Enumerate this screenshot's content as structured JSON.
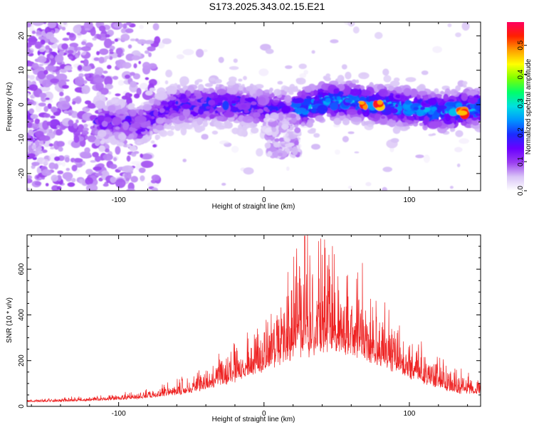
{
  "title": "S173.2025.343.02.15.E21",
  "chart_data": [
    {
      "type": "heatmap",
      "xlabel": "Height of straight line (km)",
      "ylabel": "Frequency (Hz)",
      "xlim": [
        -163,
        149
      ],
      "ylim": [
        -25,
        24
      ],
      "x_ticks": [
        -100,
        0,
        100
      ],
      "y_ticks": [
        -20,
        -10,
        0,
        10,
        20
      ],
      "colorbar": {
        "label": "Normalized spectral amplitude",
        "range": [
          0.0,
          0.58
        ],
        "ticks": [
          "0.0",
          "0.1",
          "0.2",
          "0.3",
          "0.4",
          "0.5"
        ],
        "tick_values": [
          0.0,
          0.1,
          0.2,
          0.3,
          0.4,
          0.5
        ],
        "colors": [
          "#ffffff",
          "#d9c4f7",
          "#9b3ff0",
          "#6a00ff",
          "#1c2bff",
          "#0094ff",
          "#00e0e0",
          "#00ff6a",
          "#7fff00",
          "#ffff00",
          "#ff9d00",
          "#ff2000",
          "#ff0060"
        ]
      },
      "ridge": {
        "x": [
          -163,
          -140,
          -120,
          -100,
          -85,
          -75,
          -60,
          -40,
          -20,
          0,
          20,
          40,
          60,
          80,
          100,
          120,
          149
        ],
        "freq_hz": [
          -4,
          -4,
          -4,
          -5,
          -6,
          -3,
          0,
          0,
          0,
          -1,
          -2,
          1,
          1,
          0,
          -1,
          -2,
          -1
        ]
      },
      "peak_amplitude_regions": [
        {
          "x": 68,
          "freq_hz": 0
        },
        {
          "x": 78,
          "freq_hz": 0
        },
        {
          "x": 137,
          "freq_hz": -2
        }
      ]
    },
    {
      "type": "line",
      "xlabel": "Height of straight line (km)",
      "ylabel": "SNR (10 * v/v)",
      "xlim": [
        -163,
        149
      ],
      "ylim": [
        0,
        750
      ],
      "x_ticks": [
        -100,
        0,
        100
      ],
      "y_ticks": [
        0,
        200,
        400,
        600
      ],
      "color": "#ee2222",
      "envelope": {
        "x": [
          -163,
          -140,
          -120,
          -100,
          -80,
          -60,
          -40,
          -20,
          0,
          10,
          20,
          30,
          40,
          50,
          60,
          70,
          80,
          90,
          100,
          110,
          120,
          130,
          149
        ],
        "baseline": [
          20,
          22,
          25,
          30,
          40,
          55,
          80,
          120,
          170,
          210,
          240,
          260,
          270,
          265,
          250,
          230,
          200,
          170,
          140,
          110,
          90,
          70,
          55
        ],
        "spread": [
          10,
          12,
          15,
          20,
          30,
          45,
          70,
          110,
          160,
          230,
          300,
          360,
          330,
          300,
          280,
          250,
          210,
          170,
          140,
          120,
          95,
          80,
          70
        ]
      },
      "peak": {
        "x": 28,
        "y": 745
      }
    }
  ]
}
